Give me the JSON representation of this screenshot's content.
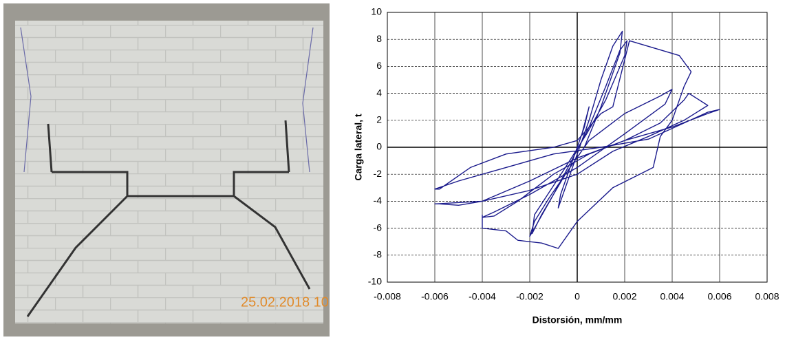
{
  "photo": {
    "timestamp": "25.02.2018 10"
  },
  "chart_data": {
    "type": "line",
    "xlabel": "Distorsión, mm/mm",
    "ylabel": "Carga lateral, t",
    "xlim": [
      -0.008,
      0.008
    ],
    "xticks": [
      -0.008,
      -0.006,
      -0.004,
      -0.002,
      0,
      0.002,
      0.004,
      0.006,
      0.008
    ],
    "ylim": [
      -10,
      10
    ],
    "yticks": [
      -10,
      -8,
      -6,
      -4,
      -2,
      0,
      2,
      4,
      6,
      8,
      10
    ],
    "grid": true,
    "series": [
      {
        "color": "#1a1a8c",
        "x": [
          0,
          0.0003,
          0.0005,
          0.0002,
          -0.0003,
          -0.0007,
          -0.0008,
          -0.0004,
          0,
          0.0005,
          0.001,
          0.0015,
          0.0019,
          0.0018,
          0.001,
          0.0003,
          -0.0005,
          -0.0012,
          -0.0018,
          -0.002,
          -0.0018,
          -0.001,
          -0.0003,
          0.0005,
          0.0012,
          0.0018,
          0.0021,
          0.002,
          0.0012,
          0.0004,
          -0.0005,
          -0.0018,
          -0.0019,
          -0.0015,
          -0.0005,
          0.0005,
          0.002,
          0.0035,
          0.004,
          0.0037,
          0.002,
          0,
          -0.002,
          -0.0035,
          -0.004,
          -0.0035,
          -0.0025,
          -0.001,
          0.0005,
          0.002,
          0.0035,
          0.0045,
          0.0047,
          0.0055,
          0.0045,
          0.003,
          0.0015,
          0,
          -0.002,
          -0.004,
          -0.006,
          -0.0058,
          -0.005,
          -0.004,
          -0.002,
          0,
          0.002,
          0.004,
          0.0055,
          0.006,
          0.0055,
          0.0045,
          0.003,
          0.001,
          -0.001,
          -0.003,
          -0.005,
          -0.006,
          -0.0058,
          -0.0045,
          -0.003,
          -0.001,
          0,
          0.001,
          0.0015,
          0.0022,
          0.0043,
          0.0048,
          0.0045,
          0.004,
          0.0035,
          0.0032,
          0.0015,
          0,
          -0.0008,
          -0.0015,
          -0.0025,
          -0.003,
          -0.004,
          -0.004
        ],
        "values": [
          0,
          1.5,
          3,
          1,
          -1.5,
          -3.5,
          -4.5,
          -2.5,
          -0.5,
          2,
          5,
          7.5,
          8.6,
          7,
          3,
          0,
          -2,
          -3.8,
          -5.5,
          -6.6,
          -6,
          -3.5,
          -1.2,
          1.5,
          4.5,
          7.2,
          7.9,
          6.8,
          3.5,
          1,
          -1.5,
          -5,
          -6.4,
          -5,
          -2,
          0.5,
          2.5,
          3.8,
          4.3,
          3.2,
          1,
          -1.5,
          -3.5,
          -4.8,
          -5.2,
          -5.1,
          -4,
          -2,
          -0.5,
          0.5,
          1.8,
          3.5,
          4,
          3.1,
          2,
          0.8,
          -0.3,
          -2,
          -3.2,
          -4,
          -4.2,
          -4.2,
          -4.3,
          -4,
          -2.5,
          -0.8,
          0.5,
          1.5,
          2.5,
          2.8,
          2.6,
          1.8,
          0.6,
          0,
          -0.5,
          -1.5,
          -2.5,
          -3.1,
          -3.1,
          -1.5,
          -0.5,
          0,
          0.5,
          2.5,
          3,
          7.9,
          6.8,
          5.6,
          4.5,
          2,
          0.8,
          -1.5,
          -3,
          -5.5,
          -7.5,
          -7.1,
          -6.9,
          -6.2,
          -6,
          -5
        ]
      }
    ]
  }
}
